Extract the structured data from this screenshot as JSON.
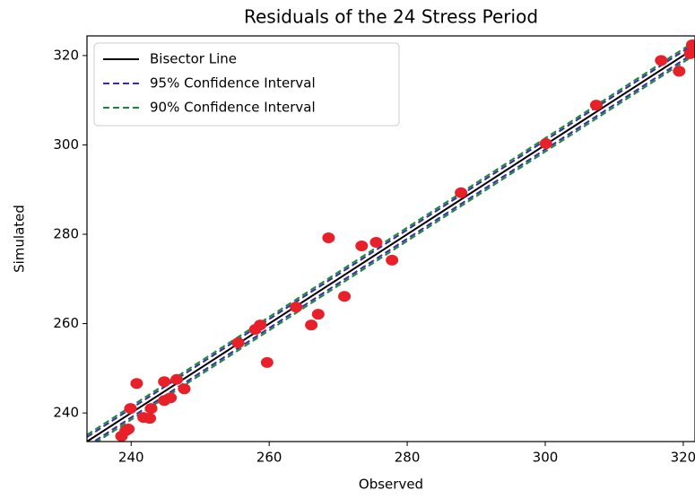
{
  "chart_data": {
    "type": "scatter",
    "title": "Residuals of the 24 Stress Period",
    "xlabel": "Observed",
    "ylabel": "Simulated",
    "xlim": [
      233.6,
      321.7
    ],
    "ylim": [
      233.6,
      324.4
    ],
    "xticks": [
      240,
      260,
      280,
      300,
      320
    ],
    "yticks": [
      240,
      260,
      280,
      300,
      320
    ],
    "legend": "upper left",
    "lines": [
      {
        "name": "Bisector Line",
        "color": "#000000",
        "dash": false,
        "x": [
          233.6,
          324.4
        ],
        "values": [
          233.6,
          324.4
        ]
      },
      {
        "name": "95% Confidence Interval",
        "color": "#3b2ba8",
        "dash": true,
        "x": [
          233.6,
          324.4
        ],
        "upper": [
          234.6,
          325.4
        ],
        "lower": [
          232.6,
          323.4
        ]
      },
      {
        "name": "90% Confidence Interval",
        "color": "#1a8a3a",
        "dash": true,
        "x": [
          233.6,
          324.4
        ],
        "upper": [
          235.1,
          325.9
        ],
        "lower": [
          232.1,
          322.9
        ]
      }
    ],
    "points": {
      "color": "#e8202a",
      "x": [
        240.8,
        239.9,
        239.2,
        238.6,
        239.6,
        241.8,
        242.7,
        242.9,
        244.8,
        244.8,
        245.7,
        246.6,
        247.7,
        255.5,
        258.0,
        258.7,
        259.7,
        263.9,
        266.1,
        267.1,
        268.6,
        270.9,
        273.4,
        275.5,
        277.8,
        287.8,
        300.1,
        307.4,
        316.8,
        319.4,
        321.0,
        321.3
      ],
      "values": [
        246.6,
        241.0,
        236.0,
        234.8,
        236.4,
        239.0,
        238.8,
        241.0,
        247.0,
        242.8,
        243.4,
        247.5,
        245.4,
        255.7,
        258.7,
        259.7,
        251.3,
        263.7,
        259.7,
        262.1,
        279.2,
        266.1,
        277.4,
        278.2,
        274.2,
        289.3,
        300.3,
        308.9,
        318.9,
        316.5,
        320.4,
        322.4
      ]
    }
  }
}
